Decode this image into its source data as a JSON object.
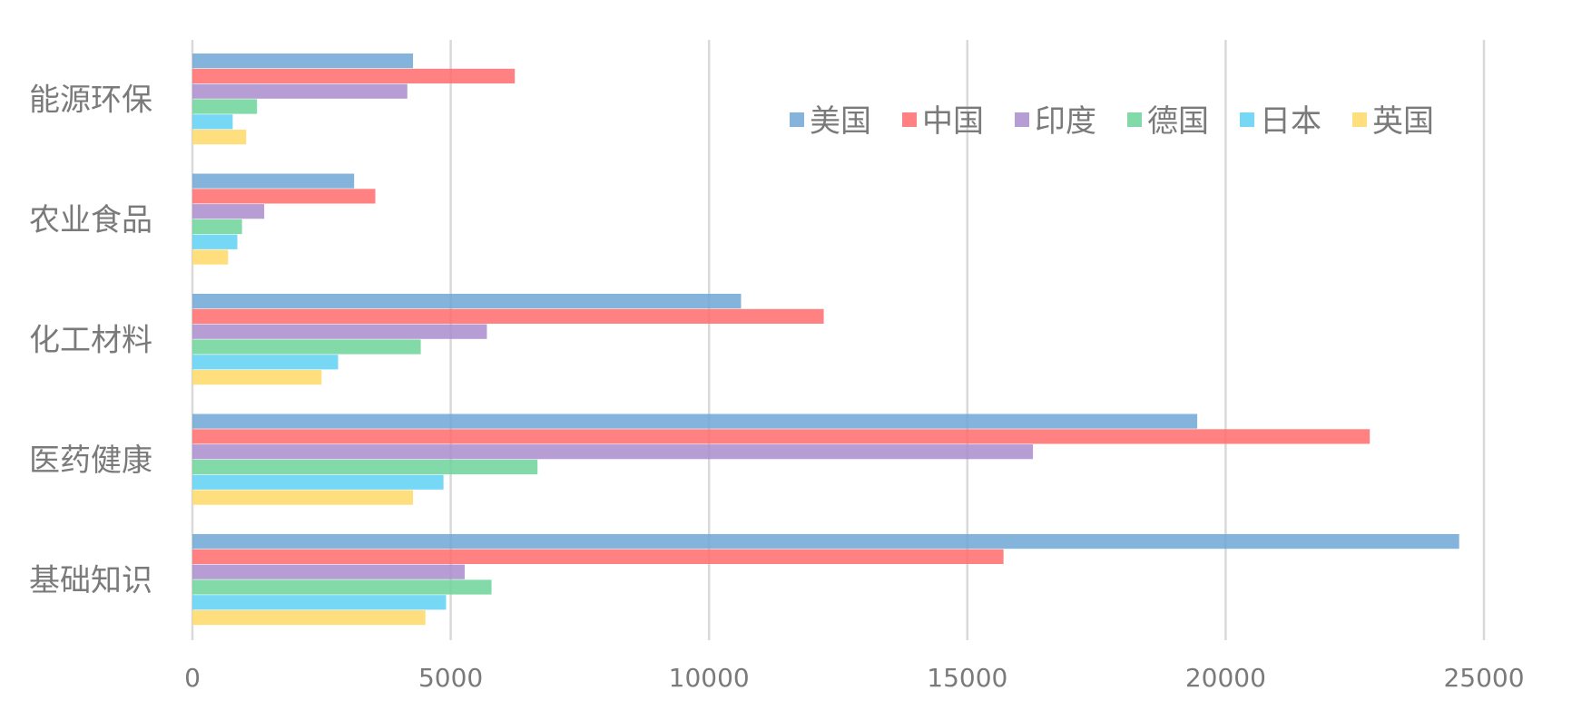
{
  "chart_data": {
    "type": "bar",
    "orientation": "horizontal",
    "categories": [
      "能源环保",
      "农业食品",
      "化工材料",
      "医药健康",
      "基础知识"
    ],
    "series": [
      {
        "name": "美国",
        "color": "#6ea6d6",
        "values": [
          4270,
          3130,
          10620,
          19450,
          24520
        ]
      },
      {
        "name": "中国",
        "color": "#ff6b6b",
        "values": [
          6240,
          3540,
          12220,
          22790,
          15700
        ]
      },
      {
        "name": "印度",
        "color": "#a98ccc",
        "values": [
          4160,
          1390,
          5700,
          16270,
          5270
        ]
      },
      {
        "name": "德国",
        "color": "#6dd49a",
        "values": [
          1250,
          960,
          4420,
          6680,
          5790
        ]
      },
      {
        "name": "日本",
        "color": "#5fd1f5",
        "values": [
          780,
          870,
          2820,
          4860,
          4910
        ]
      },
      {
        "name": "英国",
        "color": "#ffd966",
        "values": [
          1040,
          690,
          2500,
          4270,
          4510
        ]
      }
    ],
    "xlim": [
      0,
      25000
    ],
    "x_ticks": [
      "0",
      "5000",
      "10000",
      "15000",
      "20000",
      "25000"
    ],
    "title": "",
    "xlabel": "",
    "ylabel": "",
    "grid": "vertical",
    "legend_position": "top-right, inside"
  }
}
